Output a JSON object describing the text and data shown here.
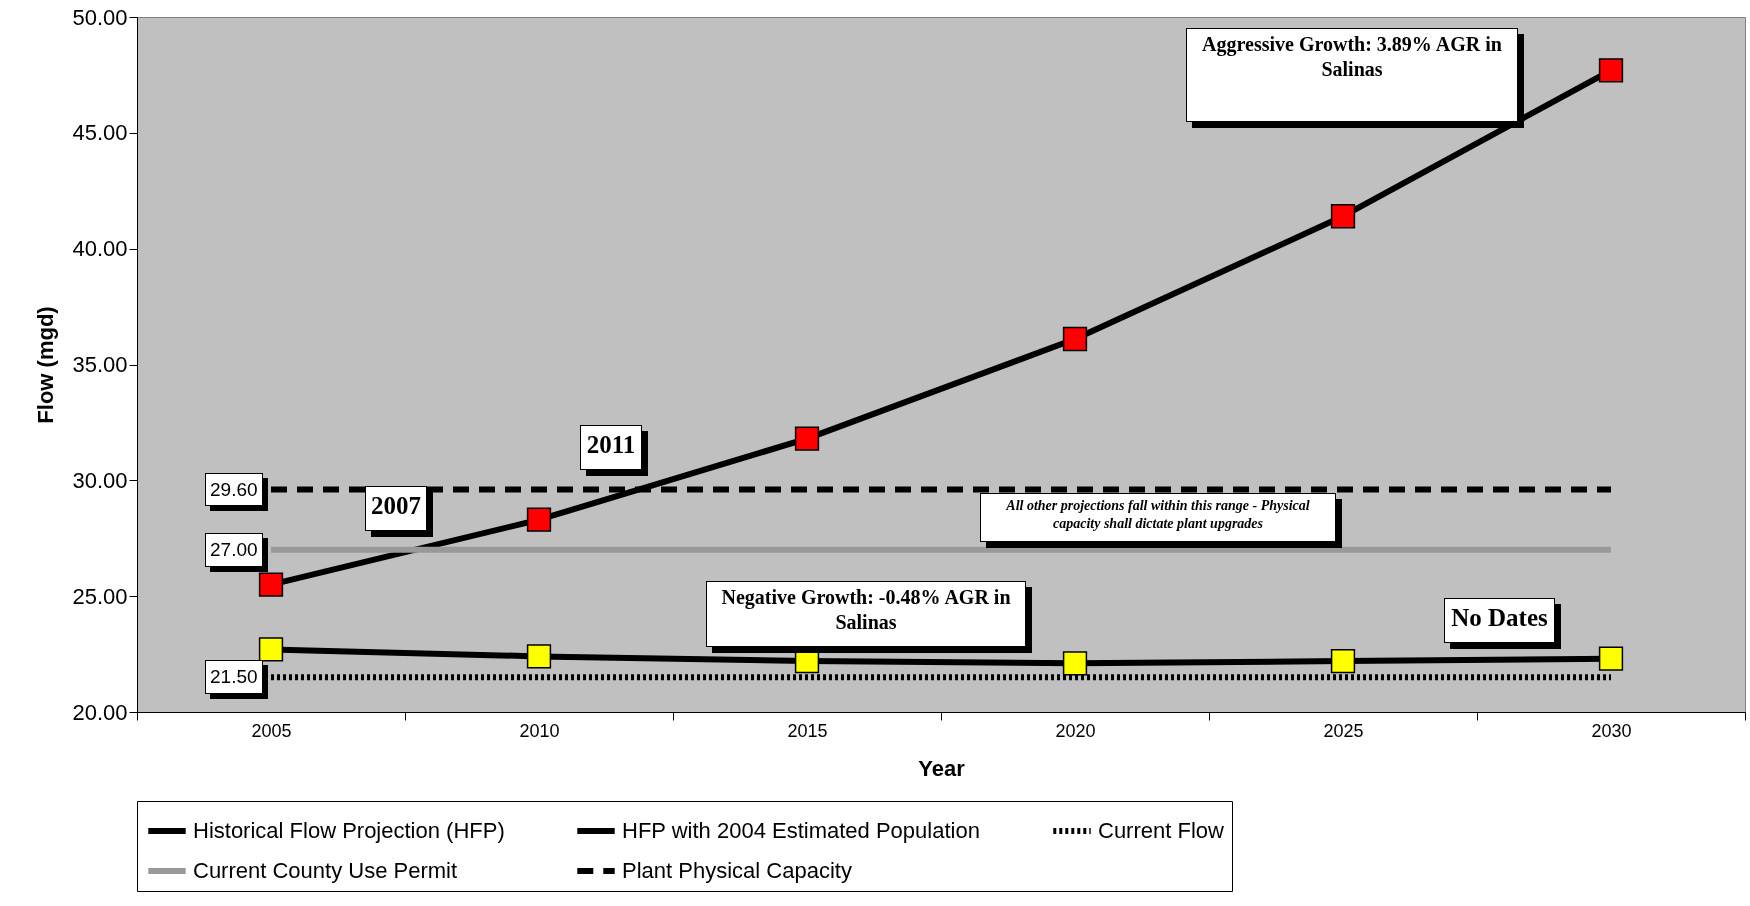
{
  "chart_data": {
    "type": "line",
    "xlabel": "Year",
    "ylabel": "Flow (mgd)",
    "categories": [
      "2005",
      "2010",
      "2015",
      "2020",
      "2025",
      "2030"
    ],
    "ylim": [
      20,
      50
    ],
    "yticks": [
      {
        "value": 20,
        "label": "20.00"
      },
      {
        "value": 25,
        "label": "25.00"
      },
      {
        "value": 30,
        "label": "30.00"
      },
      {
        "value": 35,
        "label": "35.00"
      },
      {
        "value": 40,
        "label": "40.00"
      },
      {
        "value": 45,
        "label": "45.00"
      },
      {
        "value": 50,
        "label": "50.00"
      }
    ],
    "grid": false,
    "legend": "bottom",
    "annotations": [
      "Aggressive Growth: 3.89% AGR in Salinas",
      "Negative Growth: -0.48% AGR in Salinas",
      "All other projections fall within this range - Physical capacity shall dictate plant upgrades",
      "No Dates",
      "2007",
      "2011"
    ],
    "series": [
      {
        "name": "Historical Flow Projection (HFP)",
        "color": "#ff0000",
        "marker": "square",
        "line_style": "solid",
        "values": [
          25.5,
          28.3,
          31.8,
          36.1,
          41.4,
          47.7
        ]
      },
      {
        "name": "HFP with 2004 Estimated Population",
        "color": "#ffff00",
        "marker": "square",
        "line_style": "solid",
        "values": [
          22.7,
          22.4,
          22.2,
          22.1,
          22.2,
          22.3
        ]
      },
      {
        "name": "Current Flow",
        "color": "#000000",
        "marker": "none",
        "line_style": "dotted",
        "values": [
          21.5,
          21.5,
          21.5,
          21.5,
          21.5,
          21.5
        ],
        "value_labels": [
          "21.50",
          null,
          null,
          null,
          null,
          null
        ]
      },
      {
        "name": "Current County Use Permit",
        "color": "#999999",
        "marker": "none",
        "line_style": "solid",
        "values": [
          27,
          27,
          27,
          27,
          27,
          27
        ],
        "value_labels": [
          "27.00",
          null,
          null,
          null,
          null,
          null
        ]
      },
      {
        "name": "Plant Physical Capacity",
        "color": "#000000",
        "marker": "none",
        "line_style": "dashed",
        "values": [
          29.6,
          29.6,
          29.6,
          29.6,
          29.6,
          29.6
        ],
        "value_labels": [
          "29.60",
          null,
          null,
          null,
          null,
          null
        ]
      }
    ]
  }
}
